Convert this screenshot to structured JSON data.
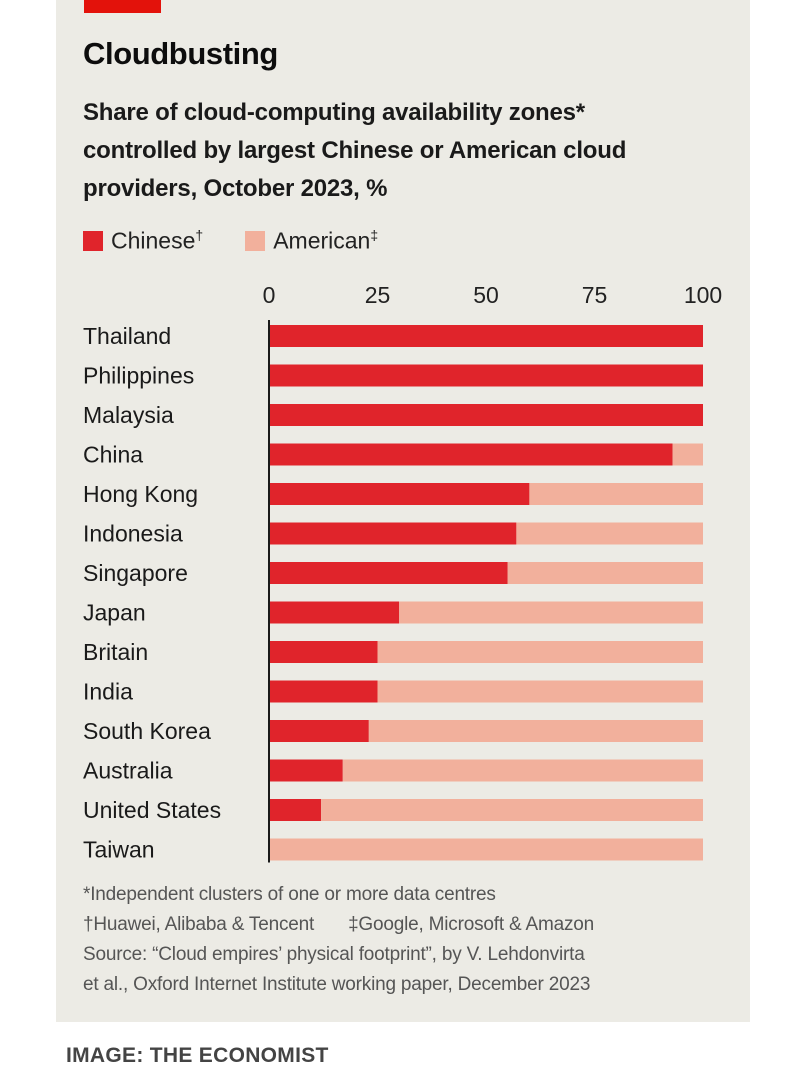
{
  "header": {
    "title": "Cloudbusting",
    "subtitle": "Share of cloud-computing availability zones* controlled by largest Chinese or American cloud providers, October 2023, %"
  },
  "legend": [
    {
      "label": "Chinese",
      "mark": "†",
      "color": "#e0242b"
    },
    {
      "label": "American",
      "mark": "‡",
      "color": "#f2b09c"
    }
  ],
  "chart_data": {
    "type": "bar",
    "orientation": "horizontal",
    "stacked": true,
    "categories": [
      "Thailand",
      "Philippines",
      "Malaysia",
      "China",
      "Hong Kong",
      "Indonesia",
      "Singapore",
      "Japan",
      "Britain",
      "India",
      "South Korea",
      "Australia",
      "United States",
      "Taiwan"
    ],
    "series": [
      {
        "name": "Chinese",
        "color": "#e0242b",
        "values": [
          100,
          100,
          100,
          93,
          60,
          57,
          55,
          30,
          25,
          25,
          23,
          17,
          12,
          0
        ]
      },
      {
        "name": "American",
        "color": "#f2b09c",
        "values": [
          0,
          0,
          0,
          7,
          40,
          43,
          45,
          70,
          75,
          75,
          77,
          83,
          88,
          100
        ]
      }
    ],
    "xticks": [
      0,
      25,
      50,
      75,
      100
    ],
    "xlim": [
      0,
      100
    ],
    "tick_position": "top",
    "grid": false
  },
  "notes": {
    "asterisk": "*Independent clusters of one or more data centres",
    "dagger": "†Huawei, Alibaba & Tencent",
    "double_dagger": "‡Google, Microsoft & Amazon",
    "source_line1": "Source: “Cloud empires’ physical footprint”, by V. Lehdonvirta",
    "source_line2": "et al., Oxford Internet Institute working paper, December 2023"
  },
  "credit": "IMAGE: THE ECONOMIST"
}
